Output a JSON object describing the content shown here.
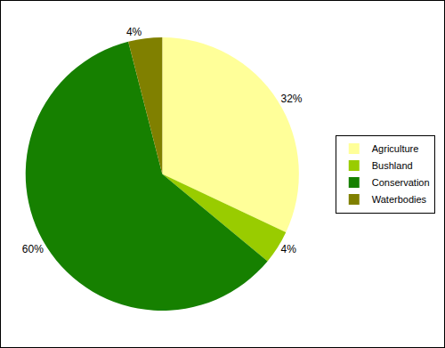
{
  "chart_data": {
    "type": "pie",
    "categories": [
      "Agriculture",
      "Bushland",
      "Conservation",
      "Waterbodies"
    ],
    "values": [
      32,
      4,
      60,
      4
    ],
    "value_labels": [
      "32%",
      "4%",
      "60%",
      "4%"
    ],
    "colors": [
      "#ffff99",
      "#99cc00",
      "#168000",
      "#808000"
    ],
    "data_labels": true,
    "legend": "right"
  }
}
